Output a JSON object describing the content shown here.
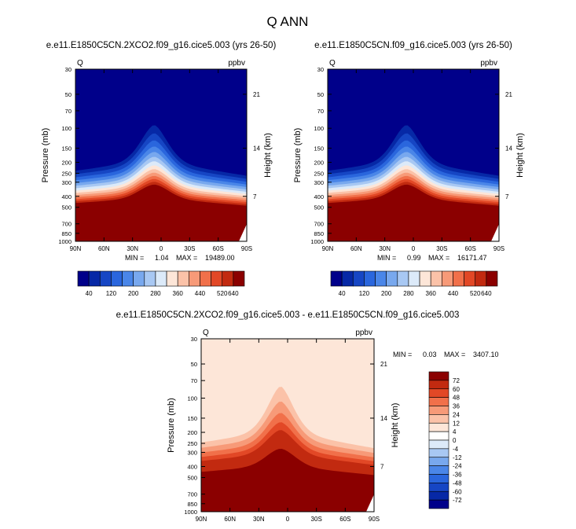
{
  "page_title": "Q ANN",
  "chart_data": [
    {
      "type": "heatmap",
      "panel": "top-left",
      "title": "e.e11.E1850C5CN.2XCO2.f09_g16.cice5.003 (yrs 26-50)",
      "variable_label": "Q",
      "units_label": "ppbv",
      "xlabel": "",
      "ylabel": "Pressure (mb)",
      "y2label": "Height (km)",
      "x_ticks": [
        "90N",
        "60N",
        "30N",
        "0",
        "30S",
        "60S",
        "90S"
      ],
      "y_ticks": [
        "30",
        "50",
        "70",
        "100",
        "150",
        "200",
        "250",
        "300",
        "400",
        "500",
        "700",
        "850",
        "1000"
      ],
      "y2_ticks": [
        "21",
        "14",
        "7"
      ],
      "min_label": "MIN =",
      "min_value": "1.04",
      "max_label": "MAX =",
      "max_value": "19489.00",
      "colorbar_orientation": "horizontal",
      "colorbar_labels": [
        "40",
        "120",
        "200",
        "280",
        "360",
        "440",
        "520",
        "640"
      ],
      "colorbar_colors": [
        "#00008a",
        "#0628a6",
        "#1646c4",
        "#2a66dd",
        "#4a86e8",
        "#78a8ee",
        "#a8c8f3",
        "#dceaf9",
        "#fde6d8",
        "#fbc2a8",
        "#f79a78",
        "#f1704a",
        "#e24826",
        "#c22a10",
        "#8b0000"
      ],
      "field_description": "high values in lower troposphere rising to ~300 mb near the equator, low values in upper levels"
    },
    {
      "type": "heatmap",
      "panel": "top-right",
      "title": "e.e11.E1850C5CN.f09_g16.cice5.003 (yrs 26-50)",
      "variable_label": "Q",
      "units_label": "ppbv",
      "xlabel": "",
      "ylabel": "Pressure (mb)",
      "y2label": "Height (km)",
      "x_ticks": [
        "90N",
        "60N",
        "30N",
        "0",
        "30S",
        "60S",
        "90S"
      ],
      "y_ticks": [
        "30",
        "50",
        "70",
        "100",
        "150",
        "200",
        "250",
        "300",
        "400",
        "500",
        "700",
        "850",
        "1000"
      ],
      "y2_ticks": [
        "21",
        "14",
        "7"
      ],
      "min_label": "MIN =",
      "min_value": "0.99",
      "max_label": "MAX =",
      "max_value": "16171.47",
      "colorbar_orientation": "horizontal",
      "colorbar_labels": [
        "40",
        "120",
        "200",
        "280",
        "360",
        "440",
        "520",
        "640"
      ],
      "colorbar_colors": [
        "#00008a",
        "#0628a6",
        "#1646c4",
        "#2a66dd",
        "#4a86e8",
        "#78a8ee",
        "#a8c8f3",
        "#dceaf9",
        "#fde6d8",
        "#fbc2a8",
        "#f79a78",
        "#f1704a",
        "#e24826",
        "#c22a10",
        "#8b0000"
      ],
      "field_description": "high values in lower troposphere rising to ~300 mb near the equator, low values in upper levels"
    },
    {
      "type": "heatmap",
      "panel": "bottom",
      "title": "e.e11.E1850C5CN.2XCO2.f09_g16.cice5.003 - e.e11.E1850C5CN.f09_g16.cice5.003",
      "variable_label": "Q",
      "units_label": "ppbv",
      "xlabel": "",
      "ylabel": "Pressure (mb)",
      "y2label": "Height (km)",
      "x_ticks": [
        "90N",
        "60N",
        "30N",
        "0",
        "30S",
        "60S",
        "90S"
      ],
      "y_ticks": [
        "30",
        "50",
        "70",
        "100",
        "150",
        "200",
        "250",
        "300",
        "400",
        "500",
        "700",
        "850",
        "1000"
      ],
      "y2_ticks": [
        "21",
        "14",
        "7"
      ],
      "min_label": "MIN =",
      "min_value": "0.03",
      "max_label": "MAX =",
      "max_value": "3407.10",
      "colorbar_orientation": "vertical",
      "colorbar_labels": [
        "72",
        "60",
        "48",
        "36",
        "24",
        "12",
        "4",
        "0",
        "-4",
        "-12",
        "-24",
        "-36",
        "-48",
        "-60",
        "-72"
      ],
      "colorbar_colors": [
        "#8b0000",
        "#c22a10",
        "#e24826",
        "#f1704a",
        "#f79a78",
        "#fbc2a8",
        "#fde6d8",
        "#ffffff",
        "#dceaf9",
        "#a8c8f3",
        "#78a8ee",
        "#4a86e8",
        "#2a66dd",
        "#1646c4",
        "#0628a6",
        "#00008a"
      ],
      "field_description": "positive differences everywhere, largest in lower troposphere below ~250 mb"
    }
  ]
}
